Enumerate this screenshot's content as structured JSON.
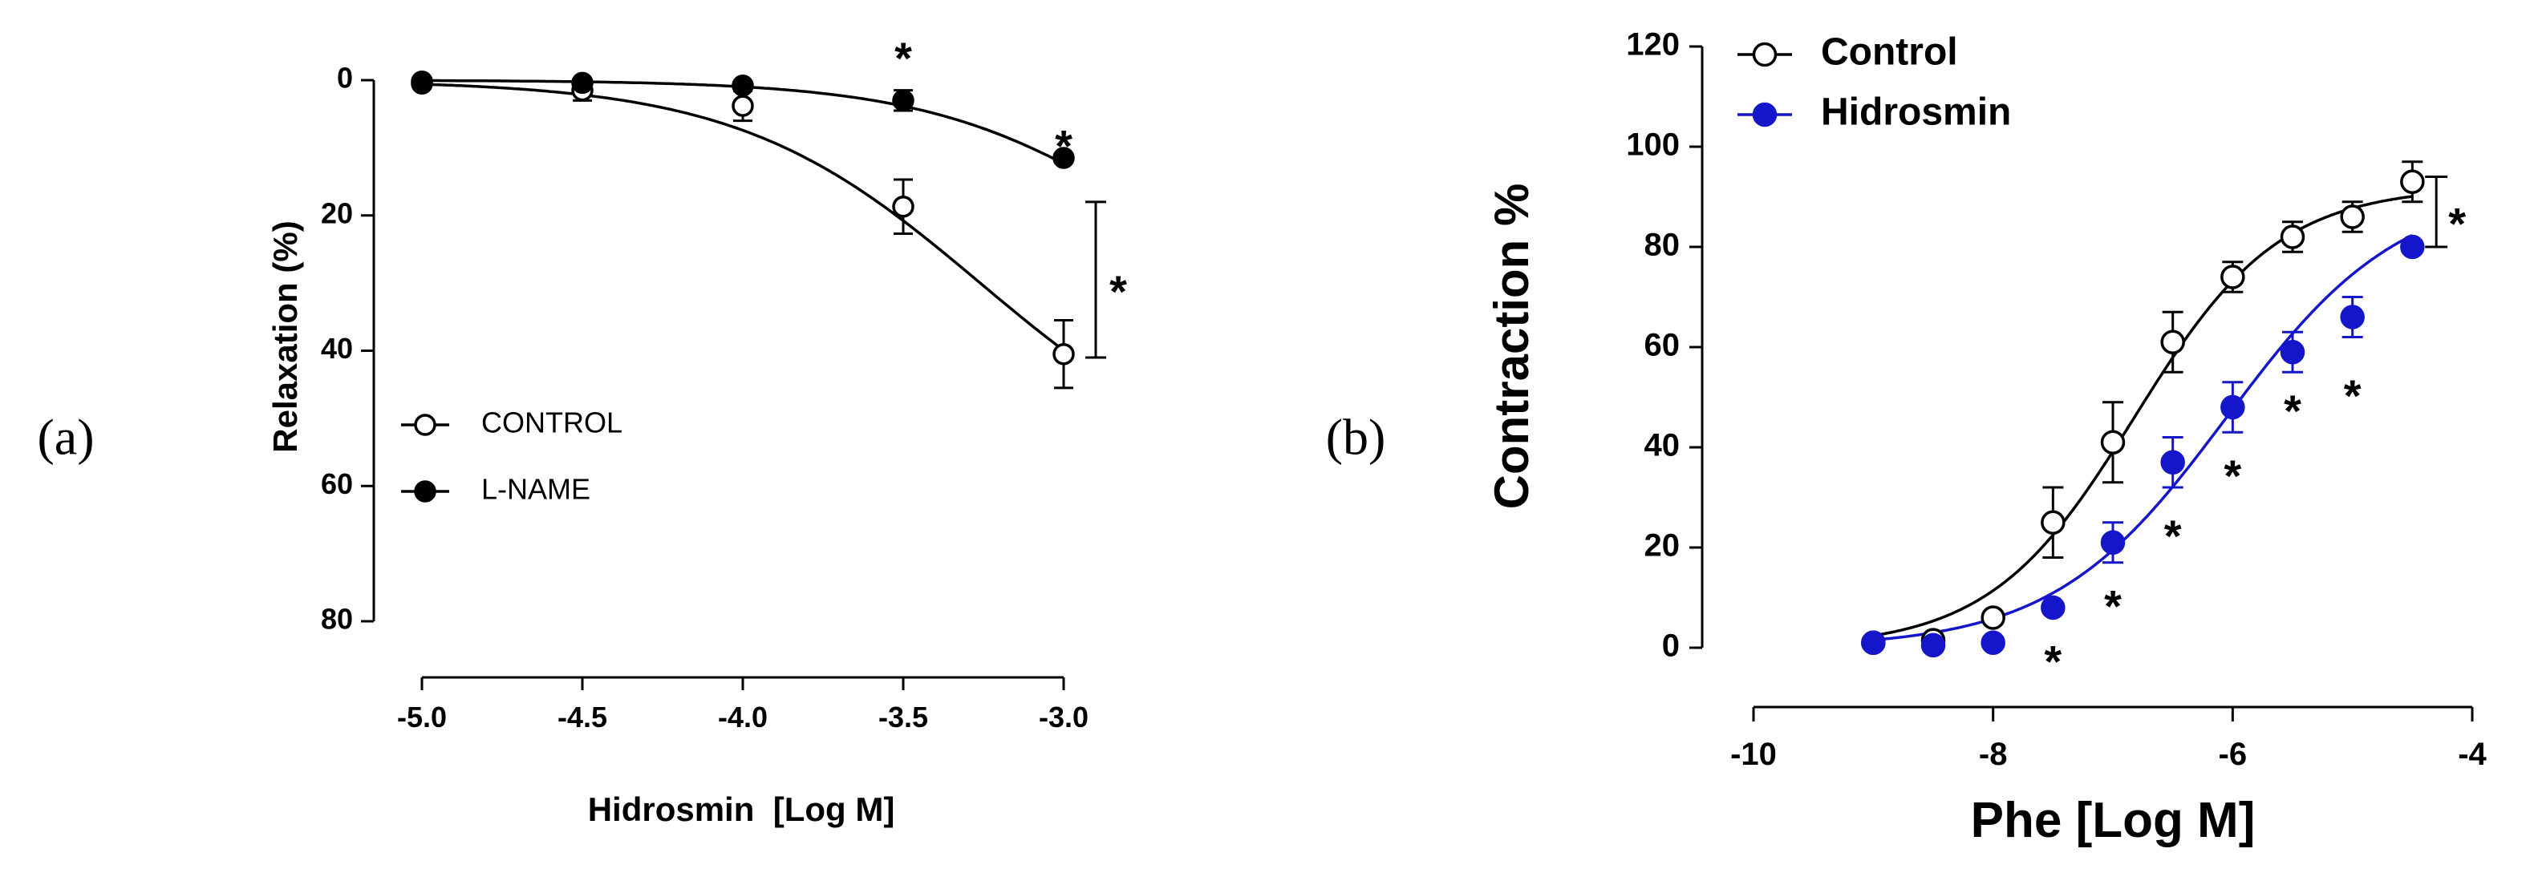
{
  "chart_data": [
    {
      "panel": "a",
      "panel_label": "(a)",
      "type": "scatter",
      "xlabel": "Hidrosmin  [Log M]",
      "ylabel": "Relaxation (%)",
      "xlim": [
        -5.0,
        -3.0
      ],
      "ylim": [
        0,
        80
      ],
      "y_inverted": true,
      "xticks": [
        "-5.0",
        "-4.5",
        "-4.0",
        "-3.5",
        "-3.0"
      ],
      "yticks": [
        "0",
        "20",
        "40",
        "60",
        "80"
      ],
      "legend": {
        "position": "bottom-left",
        "entries": [
          "CONTROL",
          "L-NAME"
        ]
      },
      "series": [
        {
          "name": "CONTROL",
          "marker": "open-circle",
          "color": "#000000",
          "x": [
            -5.0,
            -4.5,
            -4.0,
            -3.5,
            -3.0
          ],
          "y": [
            0.5,
            1.5,
            3.8,
            18.7,
            40.5
          ],
          "err": [
            1.0,
            1.5,
            2.2,
            4.0,
            5.0
          ]
        },
        {
          "name": "L-NAME",
          "marker": "filled-circle",
          "color": "#000000",
          "x": [
            -5.0,
            -4.5,
            -4.0,
            -3.5,
            -3.0
          ],
          "y": [
            0.2,
            0.4,
            0.8,
            3.0,
            11.5
          ],
          "err": [
            0.4,
            0.6,
            0.8,
            1.5,
            1.0
          ]
        }
      ],
      "annotations": [
        {
          "text": "*",
          "x": -3.5,
          "y": -4.5
        },
        {
          "text": "*",
          "x": -3.0,
          "y": 8.5
        },
        {
          "text": "*",
          "bracket_from": 18,
          "bracket_to": 41,
          "x": -2.9
        }
      ]
    },
    {
      "panel": "b",
      "panel_label": "(b)",
      "type": "scatter",
      "xlabel": "Phe [Log M]",
      "ylabel": "Contraction %",
      "xlim": [
        -10,
        -4
      ],
      "ylim": [
        0,
        120
      ],
      "xticks": [
        "-10",
        "-8",
        "-6",
        "-4"
      ],
      "yticks": [
        "0",
        "20",
        "40",
        "60",
        "80",
        "100",
        "120"
      ],
      "legend": {
        "position": "top-left",
        "entries": [
          "Control",
          "Hidrosmin"
        ]
      },
      "series": [
        {
          "name": "Control",
          "marker": "open-circle",
          "color": "#000000",
          "x": [
            -9.0,
            -8.5,
            -8.0,
            -7.5,
            -7.0,
            -6.5,
            -6.0,
            -5.5,
            -5.0,
            -4.5
          ],
          "y": [
            1,
            1.5,
            6,
            25,
            41,
            61,
            74,
            82,
            86,
            93
          ],
          "err": [
            1,
            1,
            1.5,
            7,
            8,
            6,
            3,
            3,
            3,
            4
          ]
        },
        {
          "name": "Hidrosmin",
          "marker": "filled-circle",
          "color": "#1515c9",
          "x": [
            -9.0,
            -8.5,
            -8.0,
            -7.5,
            -7.0,
            -6.5,
            -6.0,
            -5.5,
            -5.0,
            -4.5
          ],
          "y": [
            1,
            0.5,
            1,
            8,
            21,
            37,
            48,
            59,
            66,
            80
          ],
          "err": [
            0.5,
            0.5,
            0.5,
            1,
            4,
            5,
            5,
            4,
            4,
            2
          ]
        }
      ],
      "annotations": [
        {
          "text": "*",
          "x": -7.5,
          "y": -1
        },
        {
          "text": "*",
          "x": -7.0,
          "y": 10
        },
        {
          "text": "*",
          "x": -6.5,
          "y": 24
        },
        {
          "text": "*",
          "x": -6.0,
          "y": 36
        },
        {
          "text": "*",
          "x": -5.5,
          "y": 49
        },
        {
          "text": "*",
          "x": -5.0,
          "y": 52
        },
        {
          "text": "*",
          "bracket_from": 80,
          "bracket_to": 94,
          "x": -4.3
        }
      ]
    }
  ]
}
